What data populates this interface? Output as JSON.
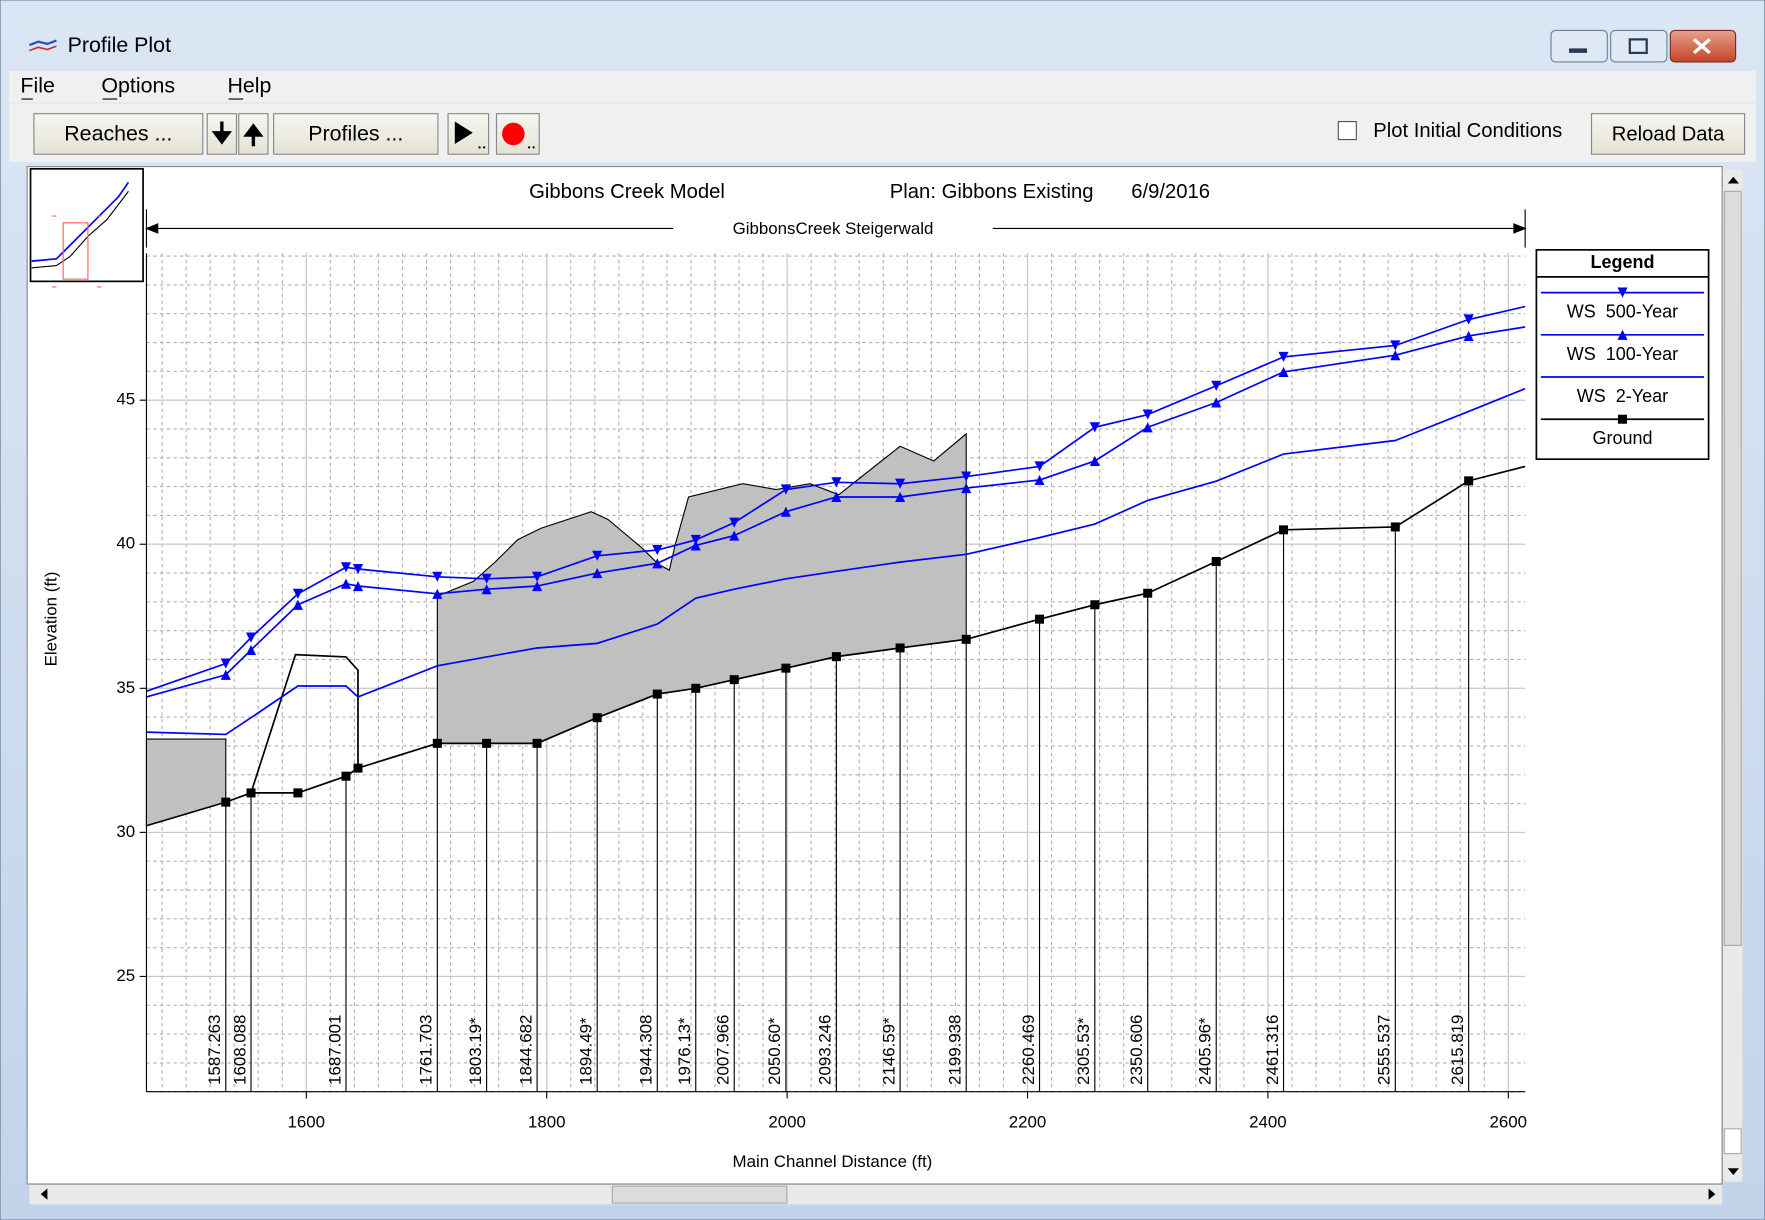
{
  "window": {
    "title": "Profile Plot",
    "menu": [
      "File",
      "Options",
      "Help"
    ],
    "toolbar": {
      "reaches": "Reaches ...",
      "profiles": "Profiles ...",
      "checkbox": "Plot Initial Conditions",
      "reload": "Reload Data"
    }
  },
  "chart_data": {
    "type": "line",
    "title": "Gibbons Creek Model",
    "plan": "Plan: Gibbons Existing",
    "date": "6/9/2016",
    "reach": "GibbonsCreek Steigerwald",
    "xlabel": "Main Channel Distance (ft)",
    "ylabel": "Elevation (ft)",
    "legend_title": "Legend",
    "x": [
      1467,
      1533,
      1554,
      1593,
      1633,
      1643,
      1709,
      1750,
      1792,
      1842,
      1892,
      1924,
      1956,
      1999,
      2041,
      2094,
      2149,
      2210,
      2256,
      2300,
      2357,
      2413,
      2506,
      2567,
      2614
    ],
    "series": [
      {
        "name": "WS  500-Year",
        "color": "#0000ff",
        "marker": "down",
        "values": [
          34.9,
          35.86,
          36.76,
          38.28,
          39.2,
          39.14,
          38.87,
          38.8,
          38.87,
          39.6,
          39.8,
          40.15,
          40.75,
          41.9,
          42.15,
          42.1,
          42.35,
          42.7,
          44.06,
          44.5,
          45.5,
          46.5,
          46.9,
          47.8,
          48.25
        ]
      },
      {
        "name": "WS  100-Year",
        "color": "#0000ff",
        "marker": "up",
        "values": [
          34.7,
          35.47,
          36.33,
          37.9,
          38.63,
          38.55,
          38.28,
          38.44,
          38.55,
          39.0,
          39.34,
          39.96,
          40.3,
          41.13,
          41.64,
          41.64,
          41.95,
          42.23,
          42.89,
          44.06,
          44.92,
          45.98,
          46.56,
          47.23,
          47.54
        ]
      },
      {
        "name": "WS  2-Year",
        "color": "#0000ff",
        "marker": "none",
        "values": [
          33.48,
          33.4,
          33.98,
          35.08,
          35.08,
          34.7,
          35.78,
          36.09,
          36.4,
          36.56,
          37.23,
          38.13,
          38.44,
          38.8,
          39.06,
          39.38,
          39.65,
          40.23,
          40.7,
          41.52,
          42.19,
          43.13,
          43.6,
          44.61,
          45.4
        ]
      },
      {
        "name": "Ground",
        "color": "#000000",
        "marker": "square",
        "values": [
          30.23,
          31.05,
          31.37,
          31.37,
          31.95,
          32.23,
          33.09,
          33.09,
          33.09,
          33.98,
          34.8,
          35.0,
          35.3,
          35.7,
          36.1,
          36.4,
          36.7,
          37.4,
          37.9,
          38.3,
          39.4,
          40.5,
          40.6,
          42.2,
          42.7
        ]
      }
    ],
    "fills": [
      {
        "color": "#c0c0c0",
        "x": [
          1467,
          1533,
          1533,
          1467
        ],
        "y": [
          33.24,
          33.24,
          31.05,
          30.23
        ]
      },
      {
        "color": "#c0c0c0",
        "x": [
          1709,
          1709,
          1739,
          1757,
          1776,
          1795,
          1837,
          1851,
          1879,
          1893,
          1902,
          1907,
          1918,
          1963,
          1991,
          2019,
          2043,
          2094,
          2122,
          2149,
          2149,
          2094,
          2041,
          1999,
          1956,
          1924,
          1892,
          1842,
          1792,
          1750
        ],
        "y": [
          33.09,
          38.2,
          38.71,
          39.38,
          40.16,
          40.55,
          41.13,
          40.86,
          39.88,
          39.3,
          39.1,
          40.0,
          41.64,
          42.1,
          41.9,
          42.1,
          41.72,
          43.4,
          42.89,
          43.83,
          36.7,
          36.4,
          36.1,
          35.7,
          35.3,
          35.0,
          34.8,
          33.98,
          33.09,
          33.09
        ]
      }
    ],
    "outline": {
      "color": "#000000",
      "x": [
        1554,
        1591,
        1633,
        1643,
        1643
      ],
      "y": [
        31.37,
        36.17,
        36.09,
        35.63,
        32.23
      ]
    },
    "stations": [
      {
        "label": "1587.263",
        "x": 1533
      },
      {
        "label": "1608.088",
        "x": 1554
      },
      {
        "label": "1687.001",
        "x": 1633
      },
      {
        "label": "1761.703",
        "x": 1709
      },
      {
        "label": "1803.19*",
        "x": 1750
      },
      {
        "label": "1844.682",
        "x": 1792
      },
      {
        "label": "1894.49*",
        "x": 1842
      },
      {
        "label": "1944.308",
        "x": 1892
      },
      {
        "label": "1976.13*",
        "x": 1924
      },
      {
        "label": "2007.966",
        "x": 1956
      },
      {
        "label": "2050.60*",
        "x": 1999
      },
      {
        "label": "2093.246",
        "x": 2041
      },
      {
        "label": "2146.59*",
        "x": 2094
      },
      {
        "label": "2199.938",
        "x": 2149
      },
      {
        "label": "2260.469",
        "x": 2210
      },
      {
        "label": "2305.53*",
        "x": 2256
      },
      {
        "label": "2350.606",
        "x": 2300
      },
      {
        "label": "2405.96*",
        "x": 2357
      },
      {
        "label": "2461.316",
        "x": 2413
      },
      {
        "label": "2555.537",
        "x": 2506
      },
      {
        "label": "2615.819",
        "x": 2567
      }
    ],
    "xlim": [
      1467,
      2614
    ],
    "ylim": [
      21,
      50.1
    ],
    "xticks": [
      1600,
      1800,
      2000,
      2200,
      2400,
      2600
    ],
    "yticks": [
      25,
      30,
      35,
      40,
      45
    ],
    "grid": true,
    "minor_xstep": 20,
    "minor_ystep": 1
  }
}
